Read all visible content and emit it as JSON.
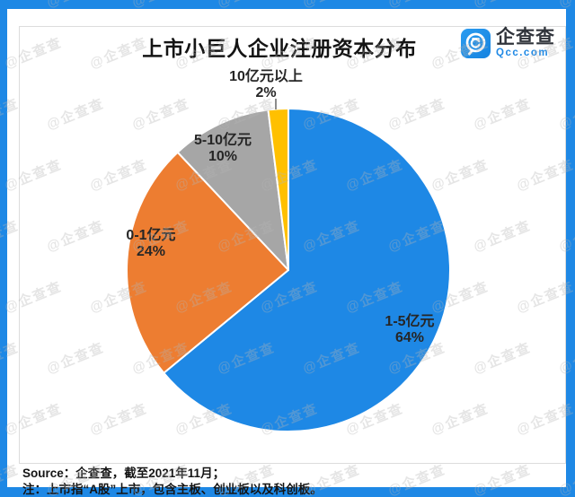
{
  "header": {
    "title": "上市小巨人企业注册资本分布",
    "logo": {
      "brand": "企查查",
      "domain": "Qcc.com"
    }
  },
  "chart_data": {
    "type": "pie",
    "title": "上市小巨人企业注册资本分布",
    "categories": [
      "1-5亿元",
      "0-1亿元",
      "5-10亿元",
      "10亿元以上"
    ],
    "values": [
      64,
      24,
      10,
      2
    ],
    "labels": [
      "64%",
      "24%",
      "10%",
      "2%"
    ],
    "unit": "percent",
    "colors": [
      "#1E88E5",
      "#ED7D31",
      "#A6A6A6",
      "#FFC000"
    ],
    "start_angle_deg": 0,
    "direction": "clockwise",
    "stroke_color": "#FFFFFF",
    "legend": "none"
  },
  "footer": {
    "source": "Source：企查查，截至2021年11月；",
    "note": "注：上市指“A股”上市，包含主板、创业板以及科创板。"
  },
  "watermark": {
    "text": "企查查"
  },
  "theme": {
    "accent": "#1E88E5",
    "frame": "#1E88E5",
    "inner_border": "#DCDCDC",
    "label_color": "#262626"
  }
}
